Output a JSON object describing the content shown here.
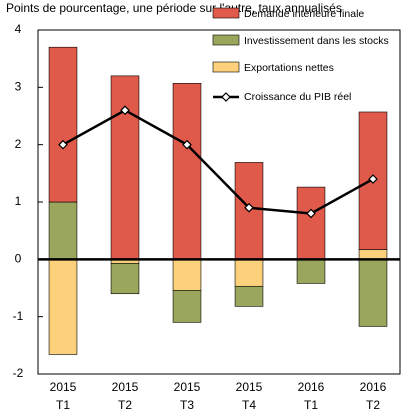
{
  "chart_data": {
    "type": "bar",
    "stacked": true,
    "title": "Points de pourcentage, une période sur l'autre, taux annualisés",
    "categories": [
      [
        "2015",
        "T1"
      ],
      [
        "2015",
        "T2"
      ],
      [
        "2015",
        "T3"
      ],
      [
        "2015",
        "T4"
      ],
      [
        "2016",
        "T1"
      ],
      [
        "2016",
        "T2"
      ]
    ],
    "series": [
      {
        "name": "Demande intérieure finale",
        "color": "#e05a4b",
        "values": [
          2.7,
          3.2,
          3.07,
          1.69,
          1.26,
          2.4
        ]
      },
      {
        "name": "Investissement dans les stocks",
        "color": "#9aa65c",
        "values": [
          1.0,
          -0.53,
          -0.56,
          -0.35,
          -0.42,
          -1.17
        ]
      },
      {
        "name": "Exportations nettes",
        "color": "#fdd17c",
        "values": [
          -1.66,
          -0.07,
          -0.54,
          -0.47,
          0,
          0.17
        ]
      },
      {
        "name": "Croissance du PIB réel",
        "color": "#000000",
        "type": "line",
        "values": [
          2.0,
          2.6,
          2.0,
          0.9,
          0.8,
          1.4
        ]
      }
    ],
    "ylim": [
      -2,
      4
    ],
    "yticks": [
      -2,
      -1,
      0,
      1,
      2,
      3,
      4
    ],
    "legend": "top-right"
  }
}
